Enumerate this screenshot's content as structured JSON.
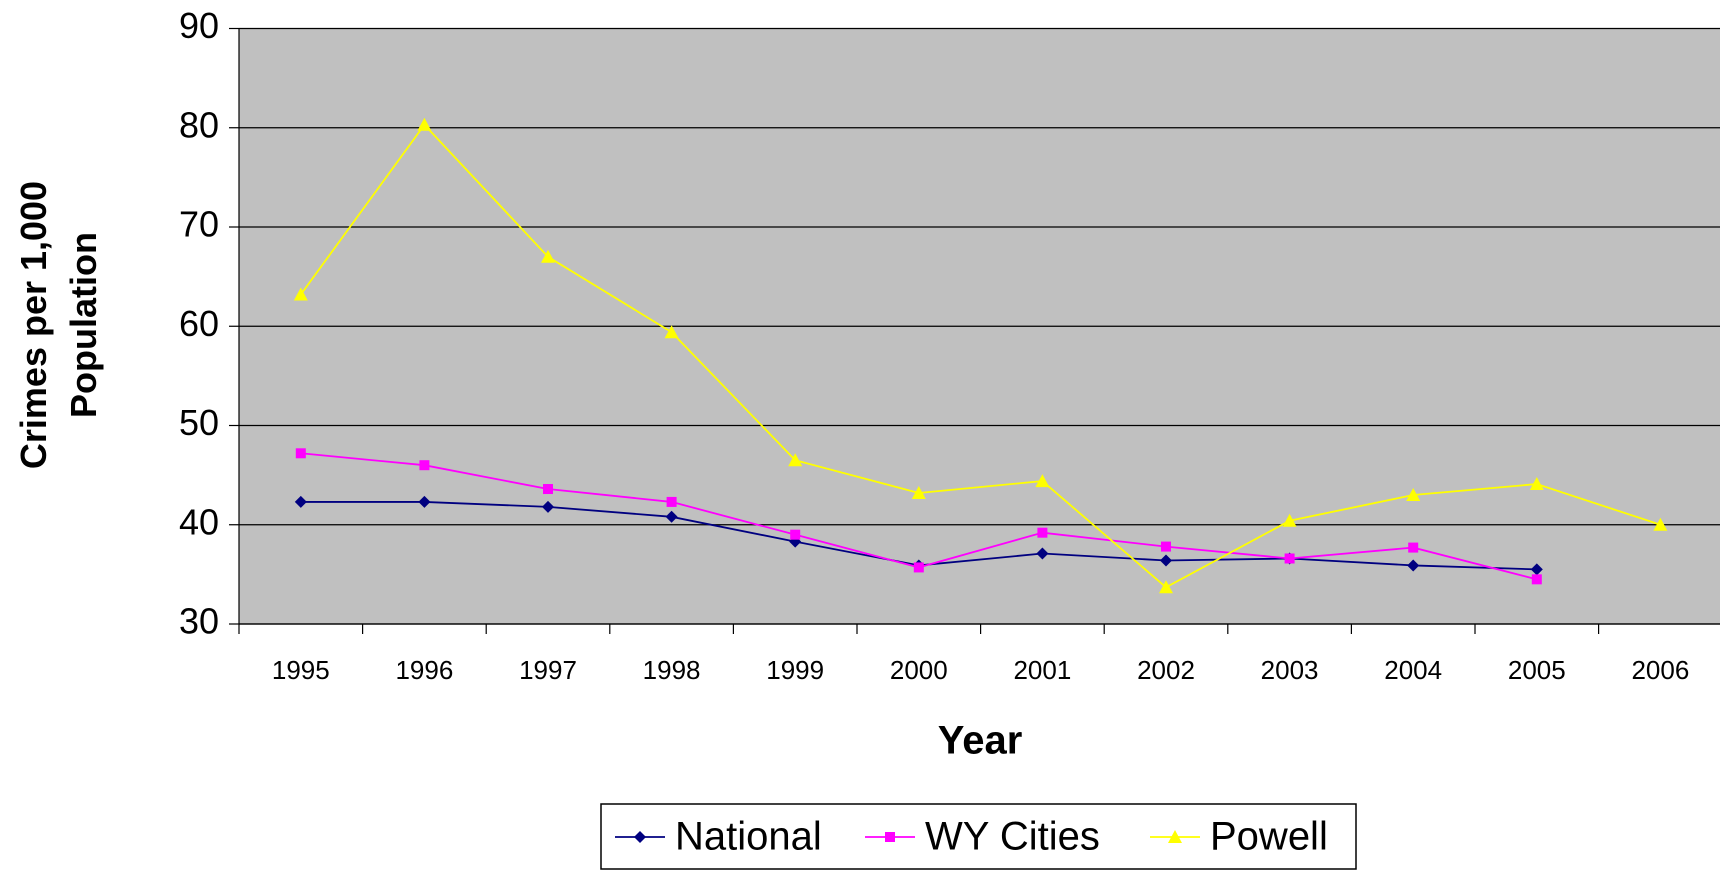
{
  "chart_data": {
    "type": "line",
    "xlabel": "Year",
    "ylabel": [
      "Crimes per 1,000",
      "Population"
    ],
    "categories": [
      "1995",
      "1996",
      "1997",
      "1998",
      "1999",
      "2000",
      "2001",
      "2002",
      "2003",
      "2004",
      "2005",
      "2006"
    ],
    "series": [
      {
        "name": "National",
        "color": "#000080",
        "marker": "diamond",
        "values": [
          42.3,
          42.3,
          41.8,
          40.8,
          38.3,
          35.9,
          37.1,
          36.4,
          36.6,
          35.9,
          35.5,
          null
        ]
      },
      {
        "name": "WY Cities",
        "color": "#ff00ff",
        "marker": "square",
        "values": [
          47.2,
          46.0,
          43.6,
          42.3,
          39.0,
          35.7,
          39.2,
          37.8,
          36.6,
          37.7,
          34.5,
          null
        ]
      },
      {
        "name": "Powell",
        "color": "#ffff00",
        "marker": "triangle",
        "values": [
          63.2,
          80.3,
          67.0,
          59.4,
          46.5,
          43.2,
          44.4,
          33.7,
          40.4,
          43.0,
          44.1,
          40.0
        ]
      }
    ],
    "ylim": [
      30,
      90
    ],
    "yticks": [
      30,
      40,
      50,
      60,
      70,
      80,
      90
    ],
    "grid": true,
    "plot_background": "#c0c0c0",
    "legend": "bottom"
  }
}
